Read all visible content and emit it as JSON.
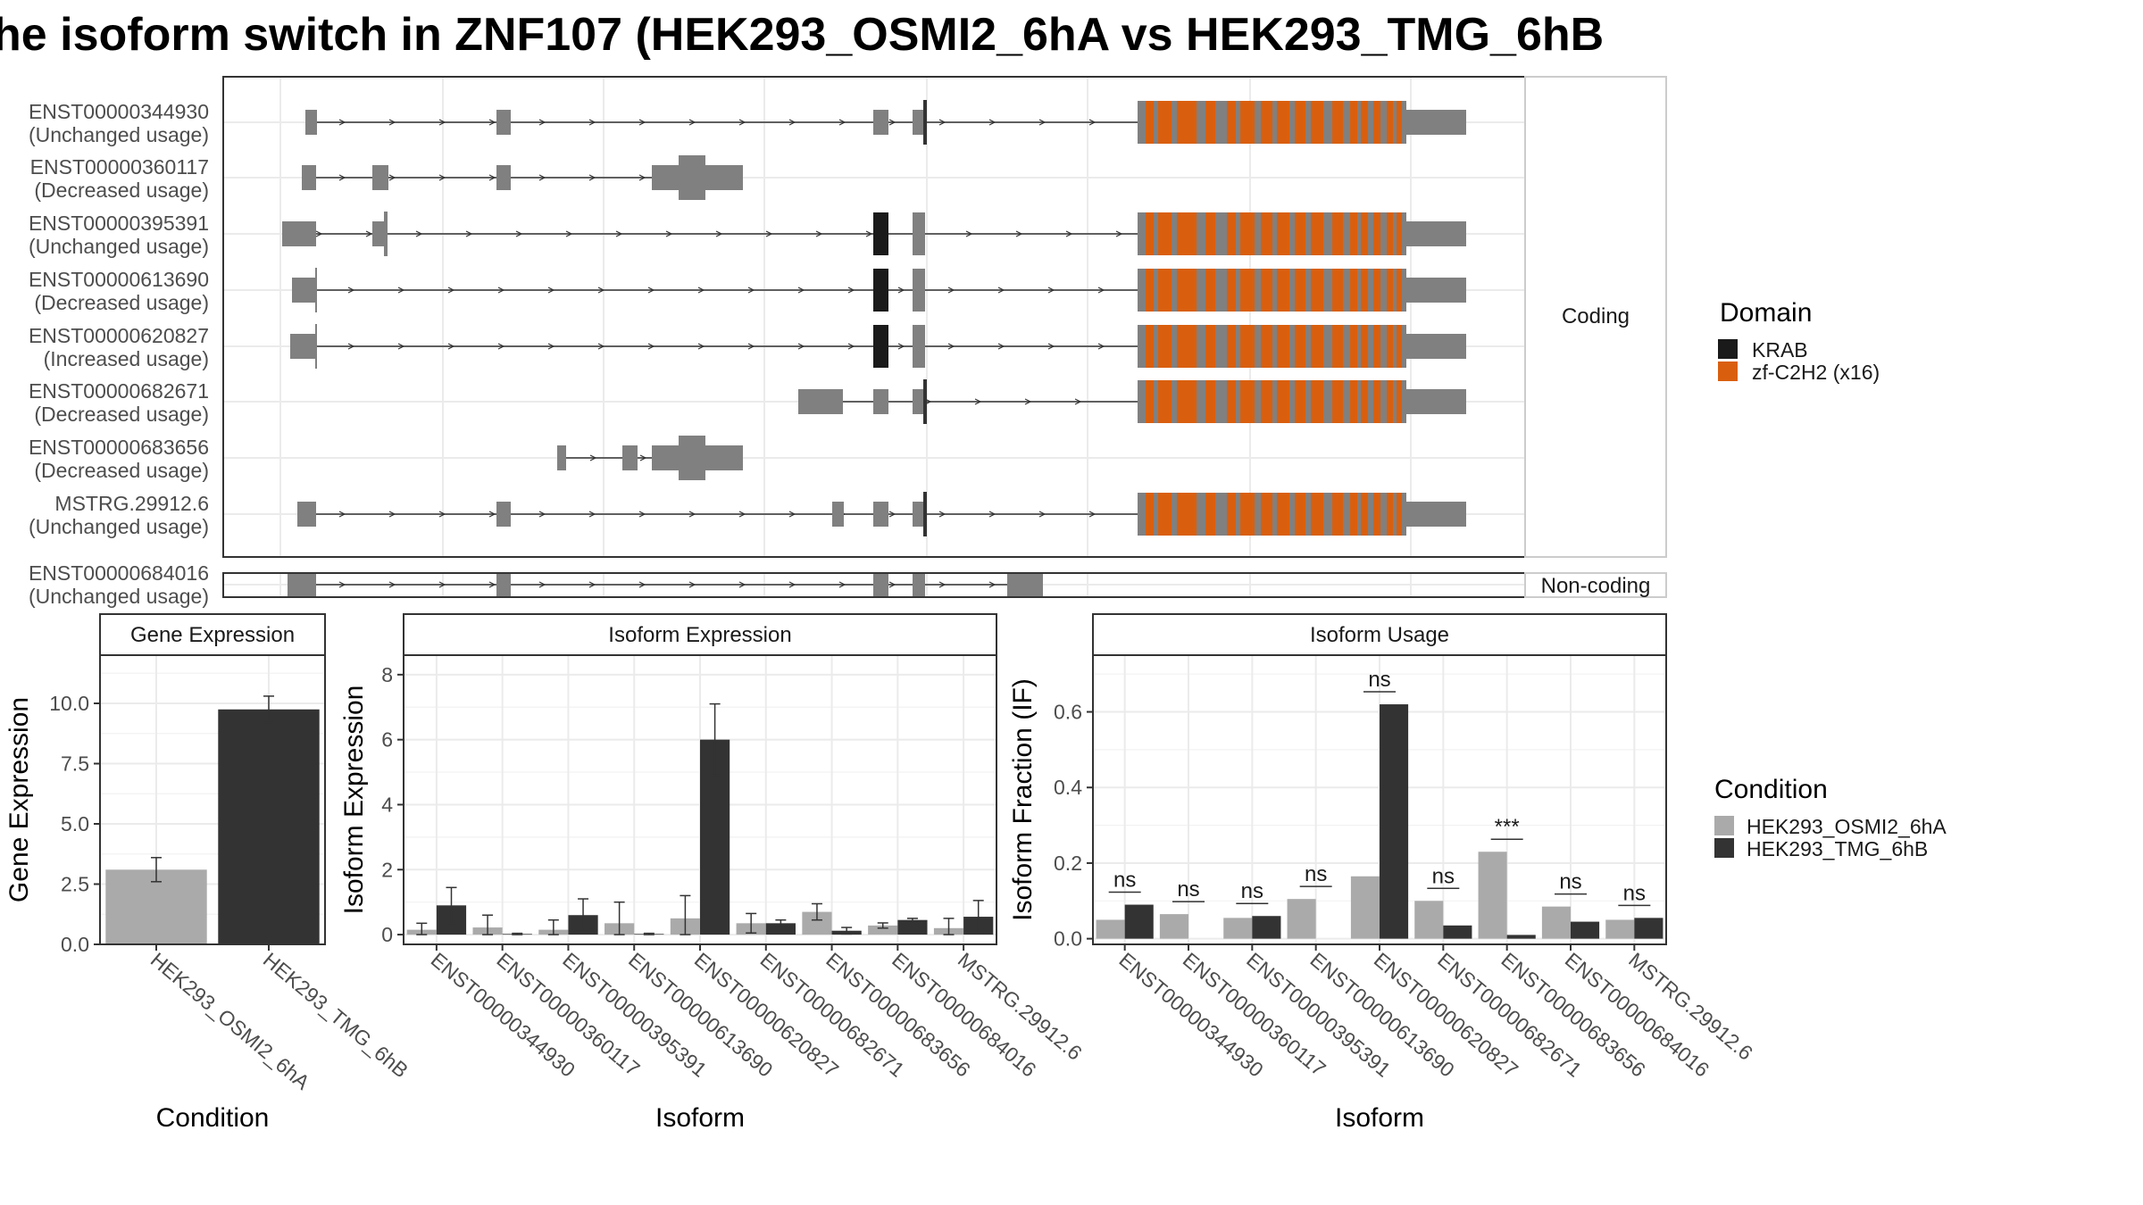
{
  "title": "he isoform switch in ZNF107 (HEK293_OSMI2_6hA vs HEK293_TMG_6hB",
  "structure": {
    "coding_strip": "Coding",
    "noncoding_strip": "Non-coding",
    "coding_transcripts": [
      {
        "id": "ENST00000344930",
        "usage": "(Unchanged usage)"
      },
      {
        "id": "ENST00000360117",
        "usage": "(Decreased usage)"
      },
      {
        "id": "ENST00000395391",
        "usage": "(Unchanged usage)"
      },
      {
        "id": "ENST00000613690",
        "usage": "(Decreased usage)"
      },
      {
        "id": "ENST00000620827",
        "usage": "(Increased usage)"
      },
      {
        "id": "ENST00000682671",
        "usage": "(Decreased usage)"
      },
      {
        "id": "ENST00000683656",
        "usage": "(Decreased usage)"
      },
      {
        "id": "MSTRG.29912.6",
        "usage": "(Unchanged usage)"
      }
    ],
    "noncoding_transcripts": [
      {
        "id": "ENST00000684016",
        "usage": "(Unchanged usage)"
      }
    ]
  },
  "legends": {
    "domain": {
      "title": "Domain",
      "items": [
        {
          "label": "KRAB",
          "color": "#1a1a1a"
        },
        {
          "label": "zf-C2H2 (x16)",
          "color": "#d95f0e"
        }
      ]
    },
    "condition": {
      "title": "Condition",
      "items": [
        {
          "label": "HEK293_OSMI2_6hA",
          "color": "#aaaaaa"
        },
        {
          "label": "HEK293_TMG_6hB",
          "color": "#333333"
        }
      ]
    }
  },
  "colors": {
    "exon": "#808080",
    "krab": "#1a1a1a",
    "znf": "#d95f0e",
    "cond_a": "#aaaaaa",
    "cond_b": "#333333"
  },
  "chart_data": [
    {
      "type": "bar",
      "panel": "Gene Expression",
      "categories": [
        "HEK293_OSMI2_6hA",
        "HEK293_TMG_6hB"
      ],
      "values": [
        3.1,
        9.75
      ],
      "error": [
        [
          2.6,
          3.6
        ],
        [
          9.2,
          10.3
        ]
      ],
      "xlabel": "Condition",
      "ylabel": "Gene Expression",
      "ylim": [
        0,
        12
      ],
      "yticks": [
        "0.0",
        "2.5",
        "5.0",
        "7.5",
        "10.0"
      ]
    },
    {
      "type": "bar",
      "panel": "Isoform Expression",
      "categories": [
        "ENST00000344930",
        "ENST00000360117",
        "ENST00000395391",
        "ENST00000613690",
        "ENST00000620827",
        "ENST00000682671",
        "ENST00000683656",
        "ENST00000684016",
        "MSTRG.29912.6"
      ],
      "series": [
        {
          "name": "HEK293_OSMI2_6hA",
          "values": [
            0.15,
            0.22,
            0.15,
            0.35,
            0.5,
            0.35,
            0.7,
            0.28,
            0.2
          ],
          "error": [
            [
              0.0,
              0.35
            ],
            [
              0.0,
              0.6
            ],
            [
              0.0,
              0.45
            ],
            [
              0.0,
              1.0
            ],
            [
              0.0,
              1.2
            ],
            [
              0.05,
              0.65
            ],
            [
              0.45,
              0.95
            ],
            [
              0.2,
              0.36
            ],
            [
              0.0,
              0.5
            ]
          ]
        },
        {
          "name": "HEK293_TMG_6hB",
          "values": [
            0.9,
            0.02,
            0.6,
            0.02,
            6.0,
            0.35,
            0.12,
            0.45,
            0.55
          ],
          "error": [
            [
              0.35,
              1.45
            ],
            [
              0.0,
              0.04
            ],
            [
              0.1,
              1.1
            ],
            [
              0.0,
              0.04
            ],
            [
              4.9,
              7.1
            ],
            [
              0.25,
              0.45
            ],
            [
              0.02,
              0.22
            ],
            [
              0.4,
              0.5
            ],
            [
              0.05,
              1.05
            ]
          ]
        }
      ],
      "xlabel": "Isoform",
      "ylabel": "Isoform Expression",
      "ylim": [
        -0.3,
        8.6
      ],
      "yticks": [
        "0",
        "2",
        "4",
        "6",
        "8"
      ]
    },
    {
      "type": "bar",
      "panel": "Isoform Usage",
      "categories": [
        "ENST00000344930",
        "ENST00000360117",
        "ENST00000395391",
        "ENST00000613690",
        "ENST00000620827",
        "ENST00000682671",
        "ENST00000683656",
        "ENST00000684016",
        "MSTRG.29912.6"
      ],
      "series": [
        {
          "name": "HEK293_OSMI2_6hA",
          "values": [
            0.05,
            0.065,
            0.055,
            0.105,
            0.165,
            0.1,
            0.23,
            0.085,
            0.05
          ]
        },
        {
          "name": "HEK293_TMG_6hB",
          "values": [
            0.09,
            0.0,
            0.06,
            0.0,
            0.62,
            0.035,
            0.01,
            0.045,
            0.055
          ]
        }
      ],
      "significance": [
        "ns",
        "ns",
        "ns",
        "ns",
        "ns",
        "ns",
        "***",
        "ns",
        "ns"
      ],
      "xlabel": "Isoform",
      "ylabel": "Isoform Fraction (IF)",
      "ylim": [
        -0.015,
        0.75
      ],
      "yticks": [
        "0.0",
        "0.2",
        "0.4",
        "0.6"
      ]
    }
  ]
}
